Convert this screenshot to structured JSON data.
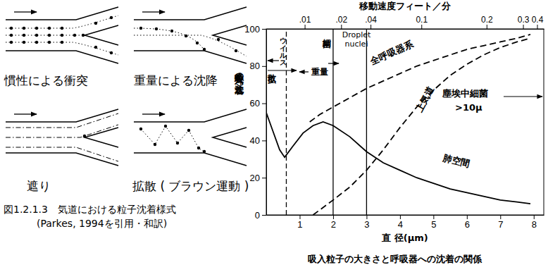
{
  "diagram": {
    "panels": [
      {
        "label": "慣性による衝突"
      },
      {
        "label": "重量による沈降"
      },
      {
        "label": "遮り"
      },
      {
        "label": "拡散 ( ブラウン運動 )"
      }
    ],
    "caption": "図1.2.1.3　気道における粒子沈着様式",
    "source": "(Parkes, 1994を引用・和訳)"
  },
  "chart_data": {
    "type": "line",
    "title": "吸入粒子の大きさと呼吸器への沈着の関係",
    "x_label": "直 径(μm)",
    "y_label": "吸入粒子の沈着(%)",
    "x2_label": "移動速度フィート／分",
    "xlim": [
      0,
      8.3
    ],
    "xticks": [
      1,
      2,
      3,
      4,
      5,
      6,
      7,
      8
    ],
    "ylim": [
      0,
      100
    ],
    "yticks": [
      0,
      20,
      40,
      60,
      80,
      100
    ],
    "x2ticks": [
      {
        "value": 1.15,
        "label": ".01"
      },
      {
        "value": 2.24,
        "label": ".02"
      },
      {
        "value": 3.12,
        "label": ".04"
      },
      {
        "value": 4.64,
        "label": "0.1"
      },
      {
        "value": 6.59,
        "label": "0.2"
      },
      {
        "value": 7.68,
        "label": "0.3"
      },
      {
        "value": 8.1,
        "label": "0.4"
      }
    ],
    "series": [
      {
        "name": "全呼吸器系",
        "color": "#000000",
        "line_style": "dashed",
        "x": [
          1.3,
          1.6,
          2,
          2.5,
          3,
          3.5,
          4,
          4.5,
          5,
          5.5,
          6,
          6.5,
          7,
          7.5,
          7.9
        ],
        "values": [
          50,
          54,
          58,
          63,
          68,
          72,
          76,
          80,
          83,
          86,
          89,
          91,
          93,
          95,
          97
        ]
      },
      {
        "name": "上気道",
        "color": "#000000",
        "line_style": "dashed",
        "x": [
          1.4,
          2,
          2.5,
          3,
          3.5,
          4,
          4.5,
          5,
          5.5,
          6,
          6.5,
          7,
          7.5,
          7.9
        ],
        "values": [
          0,
          8,
          15,
          24,
          35,
          47,
          58,
          67,
          75,
          81,
          86,
          90,
          93,
          95
        ]
      },
      {
        "name": "肺空間",
        "color": "#000000",
        "line_style": "solid",
        "x": [
          0,
          0.2,
          0.4,
          0.55,
          0.8,
          1.1,
          1.4,
          1.7,
          2,
          2.5,
          3,
          3.5,
          4,
          4.5,
          5,
          5.5,
          6,
          6.5,
          7,
          7.5,
          7.9
        ],
        "values": [
          55,
          45,
          35,
          31,
          37,
          44,
          48,
          50,
          48,
          42,
          34,
          28,
          24,
          20,
          17,
          14,
          12,
          10,
          8,
          7,
          6
        ]
      }
    ],
    "boundaries": [
      {
        "value": 0.6,
        "line_style": "dashed"
      },
      {
        "value": 2,
        "line_style": "solid"
      },
      {
        "value": 3,
        "line_style": "solid"
      }
    ],
    "annotations": [
      "ウイルス",
      "拡散",
      "細菌",
      "重量",
      "Droplet nuclei",
      "塵埃中細菌",
      ">10μ"
    ]
  }
}
